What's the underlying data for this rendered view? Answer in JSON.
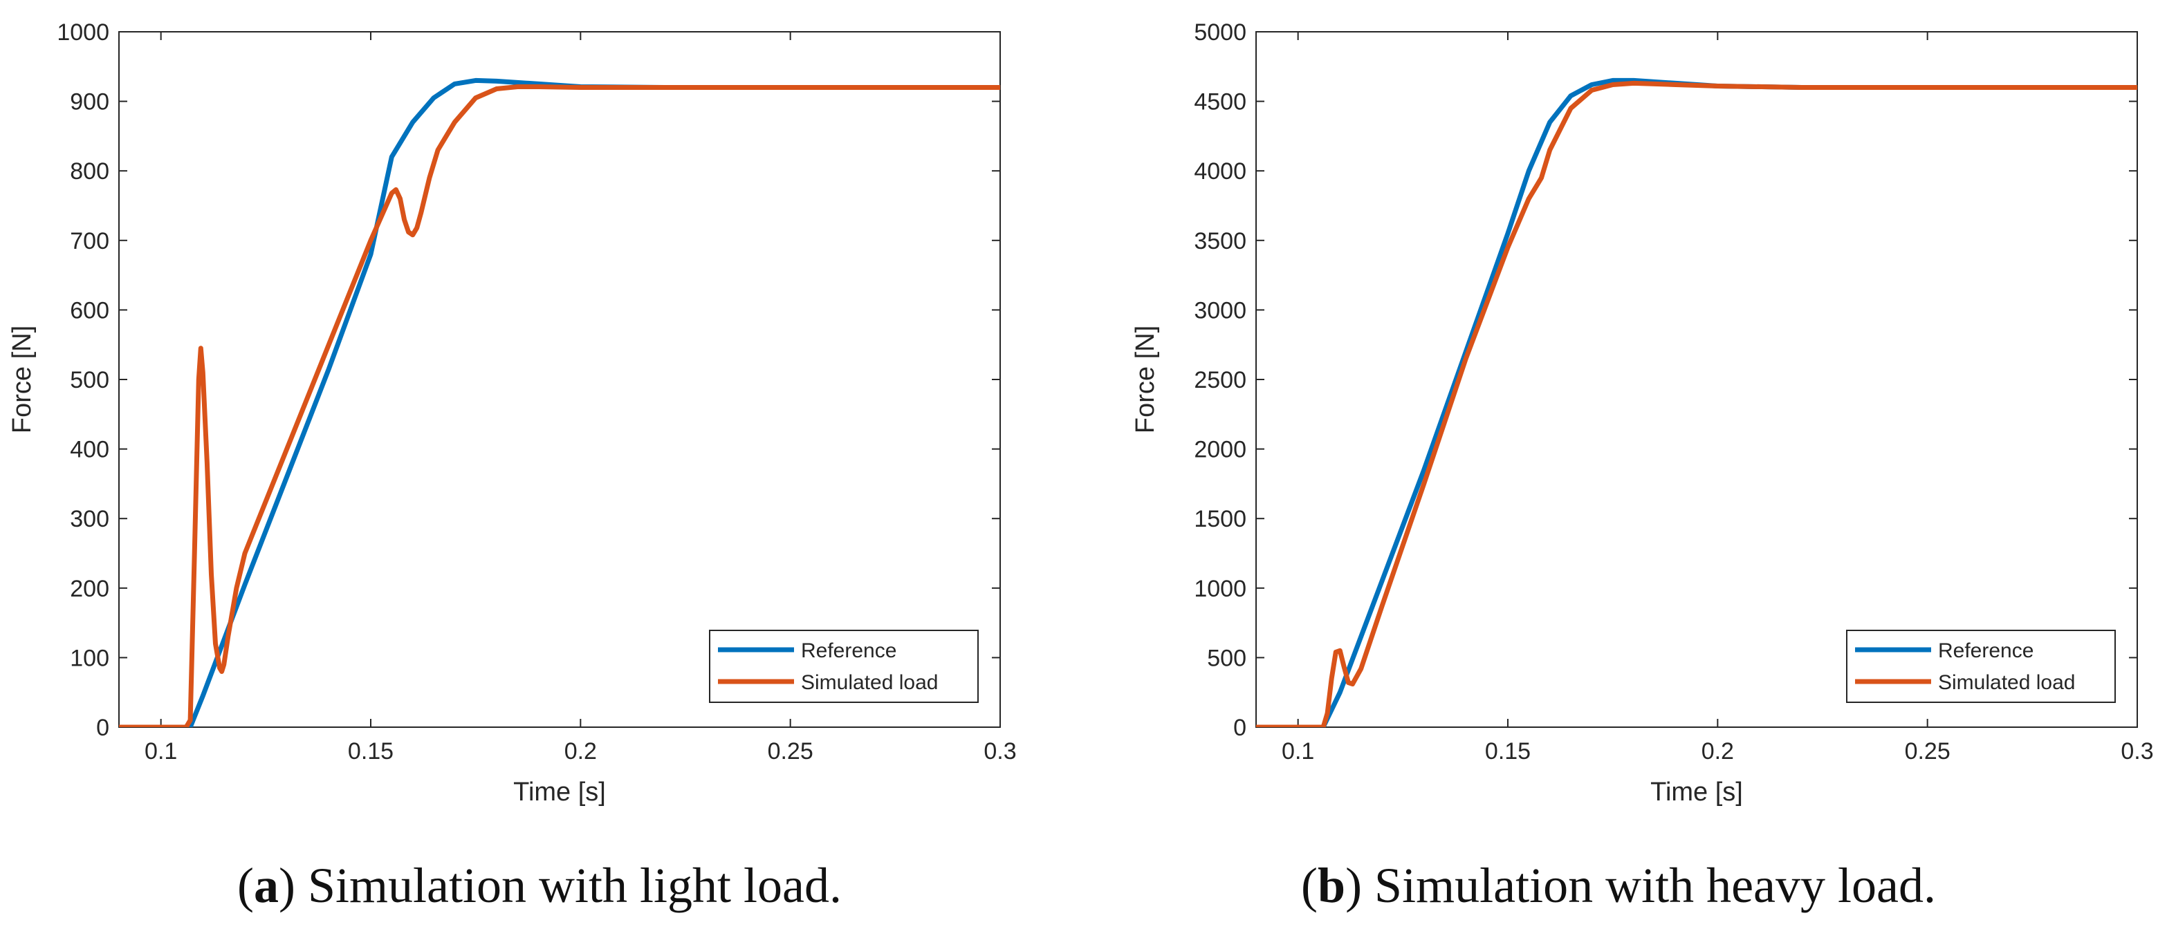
{
  "chart_data": [
    {
      "type": "line",
      "panel": "a",
      "caption_letter": "a",
      "caption_paren_open": "(",
      "caption_text": ") Simulation with light load.",
      "xlabel": "Time [s]",
      "ylabel": "Force [N]",
      "xlim": [
        0.09,
        0.3
      ],
      "ylim": [
        0,
        1000
      ],
      "xticks": [
        0.1,
        0.15,
        0.2,
        0.25,
        0.3
      ],
      "xtick_labels": [
        "0.1",
        "0.15",
        "0.2",
        "0.25",
        "0.3"
      ],
      "yticks": [
        0,
        100,
        200,
        300,
        400,
        500,
        600,
        700,
        800,
        900,
        1000
      ],
      "ytick_labels": [
        "0",
        "100",
        "200",
        "300",
        "400",
        "500",
        "600",
        "700",
        "800",
        "900",
        "1000"
      ],
      "legend_position": "bottom-right",
      "series": [
        {
          "name": "Reference",
          "color": "#0072BD",
          "x": [
            0.09,
            0.107,
            0.11,
            0.12,
            0.13,
            0.14,
            0.15,
            0.155,
            0.16,
            0.165,
            0.17,
            0.175,
            0.18,
            0.19,
            0.2,
            0.22,
            0.25,
            0.3
          ],
          "y": [
            0,
            0,
            45,
            205,
            360,
            515,
            680,
            820,
            870,
            905,
            925,
            930,
            929,
            925,
            921,
            920,
            920,
            920
          ]
        },
        {
          "name": "Simulated load",
          "color": "#D95319",
          "x": [
            0.09,
            0.106,
            0.107,
            0.108,
            0.109,
            0.1095,
            0.11,
            0.111,
            0.112,
            0.113,
            0.114,
            0.1145,
            0.115,
            0.116,
            0.118,
            0.12,
            0.13,
            0.14,
            0.15,
            0.155,
            0.156,
            0.157,
            0.158,
            0.159,
            0.16,
            0.161,
            0.162,
            0.164,
            0.166,
            0.17,
            0.175,
            0.18,
            0.185,
            0.19,
            0.2,
            0.25,
            0.3
          ],
          "y": [
            0,
            0,
            10,
            250,
            500,
            545,
            510,
            380,
            220,
            120,
            85,
            80,
            90,
            130,
            200,
            250,
            400,
            550,
            700,
            768,
            773,
            760,
            730,
            712,
            708,
            718,
            740,
            790,
            830,
            870,
            905,
            918,
            921,
            921,
            920,
            920,
            920
          ]
        }
      ]
    },
    {
      "type": "line",
      "panel": "b",
      "caption_letter": "b",
      "caption_paren_open": "(",
      "caption_text": ") Simulation with heavy load.",
      "xlabel": "Time [s]",
      "ylabel": "Force [N]",
      "xlim": [
        0.09,
        0.3
      ],
      "ylim": [
        0,
        5000
      ],
      "xticks": [
        0.1,
        0.15,
        0.2,
        0.25,
        0.3
      ],
      "xtick_labels": [
        "0.1",
        "0.15",
        "0.2",
        "0.25",
        "0.3"
      ],
      "yticks": [
        0,
        500,
        1000,
        1500,
        2000,
        2500,
        3000,
        3500,
        4000,
        4500,
        5000
      ],
      "ytick_labels": [
        "0",
        "500",
        "1000",
        "1500",
        "2000",
        "2500",
        "3000",
        "3500",
        "4000",
        "4500",
        "5000"
      ],
      "legend_position": "bottom-right",
      "series": [
        {
          "name": "Reference",
          "color": "#0072BD",
          "x": [
            0.09,
            0.106,
            0.11,
            0.12,
            0.13,
            0.14,
            0.15,
            0.155,
            0.16,
            0.165,
            0.17,
            0.175,
            0.18,
            0.19,
            0.2,
            0.22,
            0.25,
            0.3
          ],
          "y": [
            0,
            0,
            250,
            1050,
            1850,
            2700,
            3550,
            4000,
            4350,
            4540,
            4620,
            4650,
            4650,
            4630,
            4610,
            4600,
            4600,
            4600
          ]
        },
        {
          "name": "Simulated load",
          "color": "#D95319",
          "x": [
            0.09,
            0.106,
            0.107,
            0.108,
            0.109,
            0.11,
            0.111,
            0.112,
            0.113,
            0.115,
            0.12,
            0.13,
            0.14,
            0.15,
            0.155,
            0.157,
            0.158,
            0.16,
            0.165,
            0.17,
            0.175,
            0.18,
            0.185,
            0.19,
            0.2,
            0.22,
            0.25,
            0.3
          ],
          "y": [
            0,
            0,
            100,
            350,
            540,
            550,
            430,
            320,
            310,
            420,
            870,
            1750,
            2650,
            3450,
            3800,
            3900,
            3950,
            4150,
            4450,
            4580,
            4620,
            4630,
            4625,
            4620,
            4610,
            4600,
            4600,
            4600
          ]
        }
      ]
    }
  ]
}
